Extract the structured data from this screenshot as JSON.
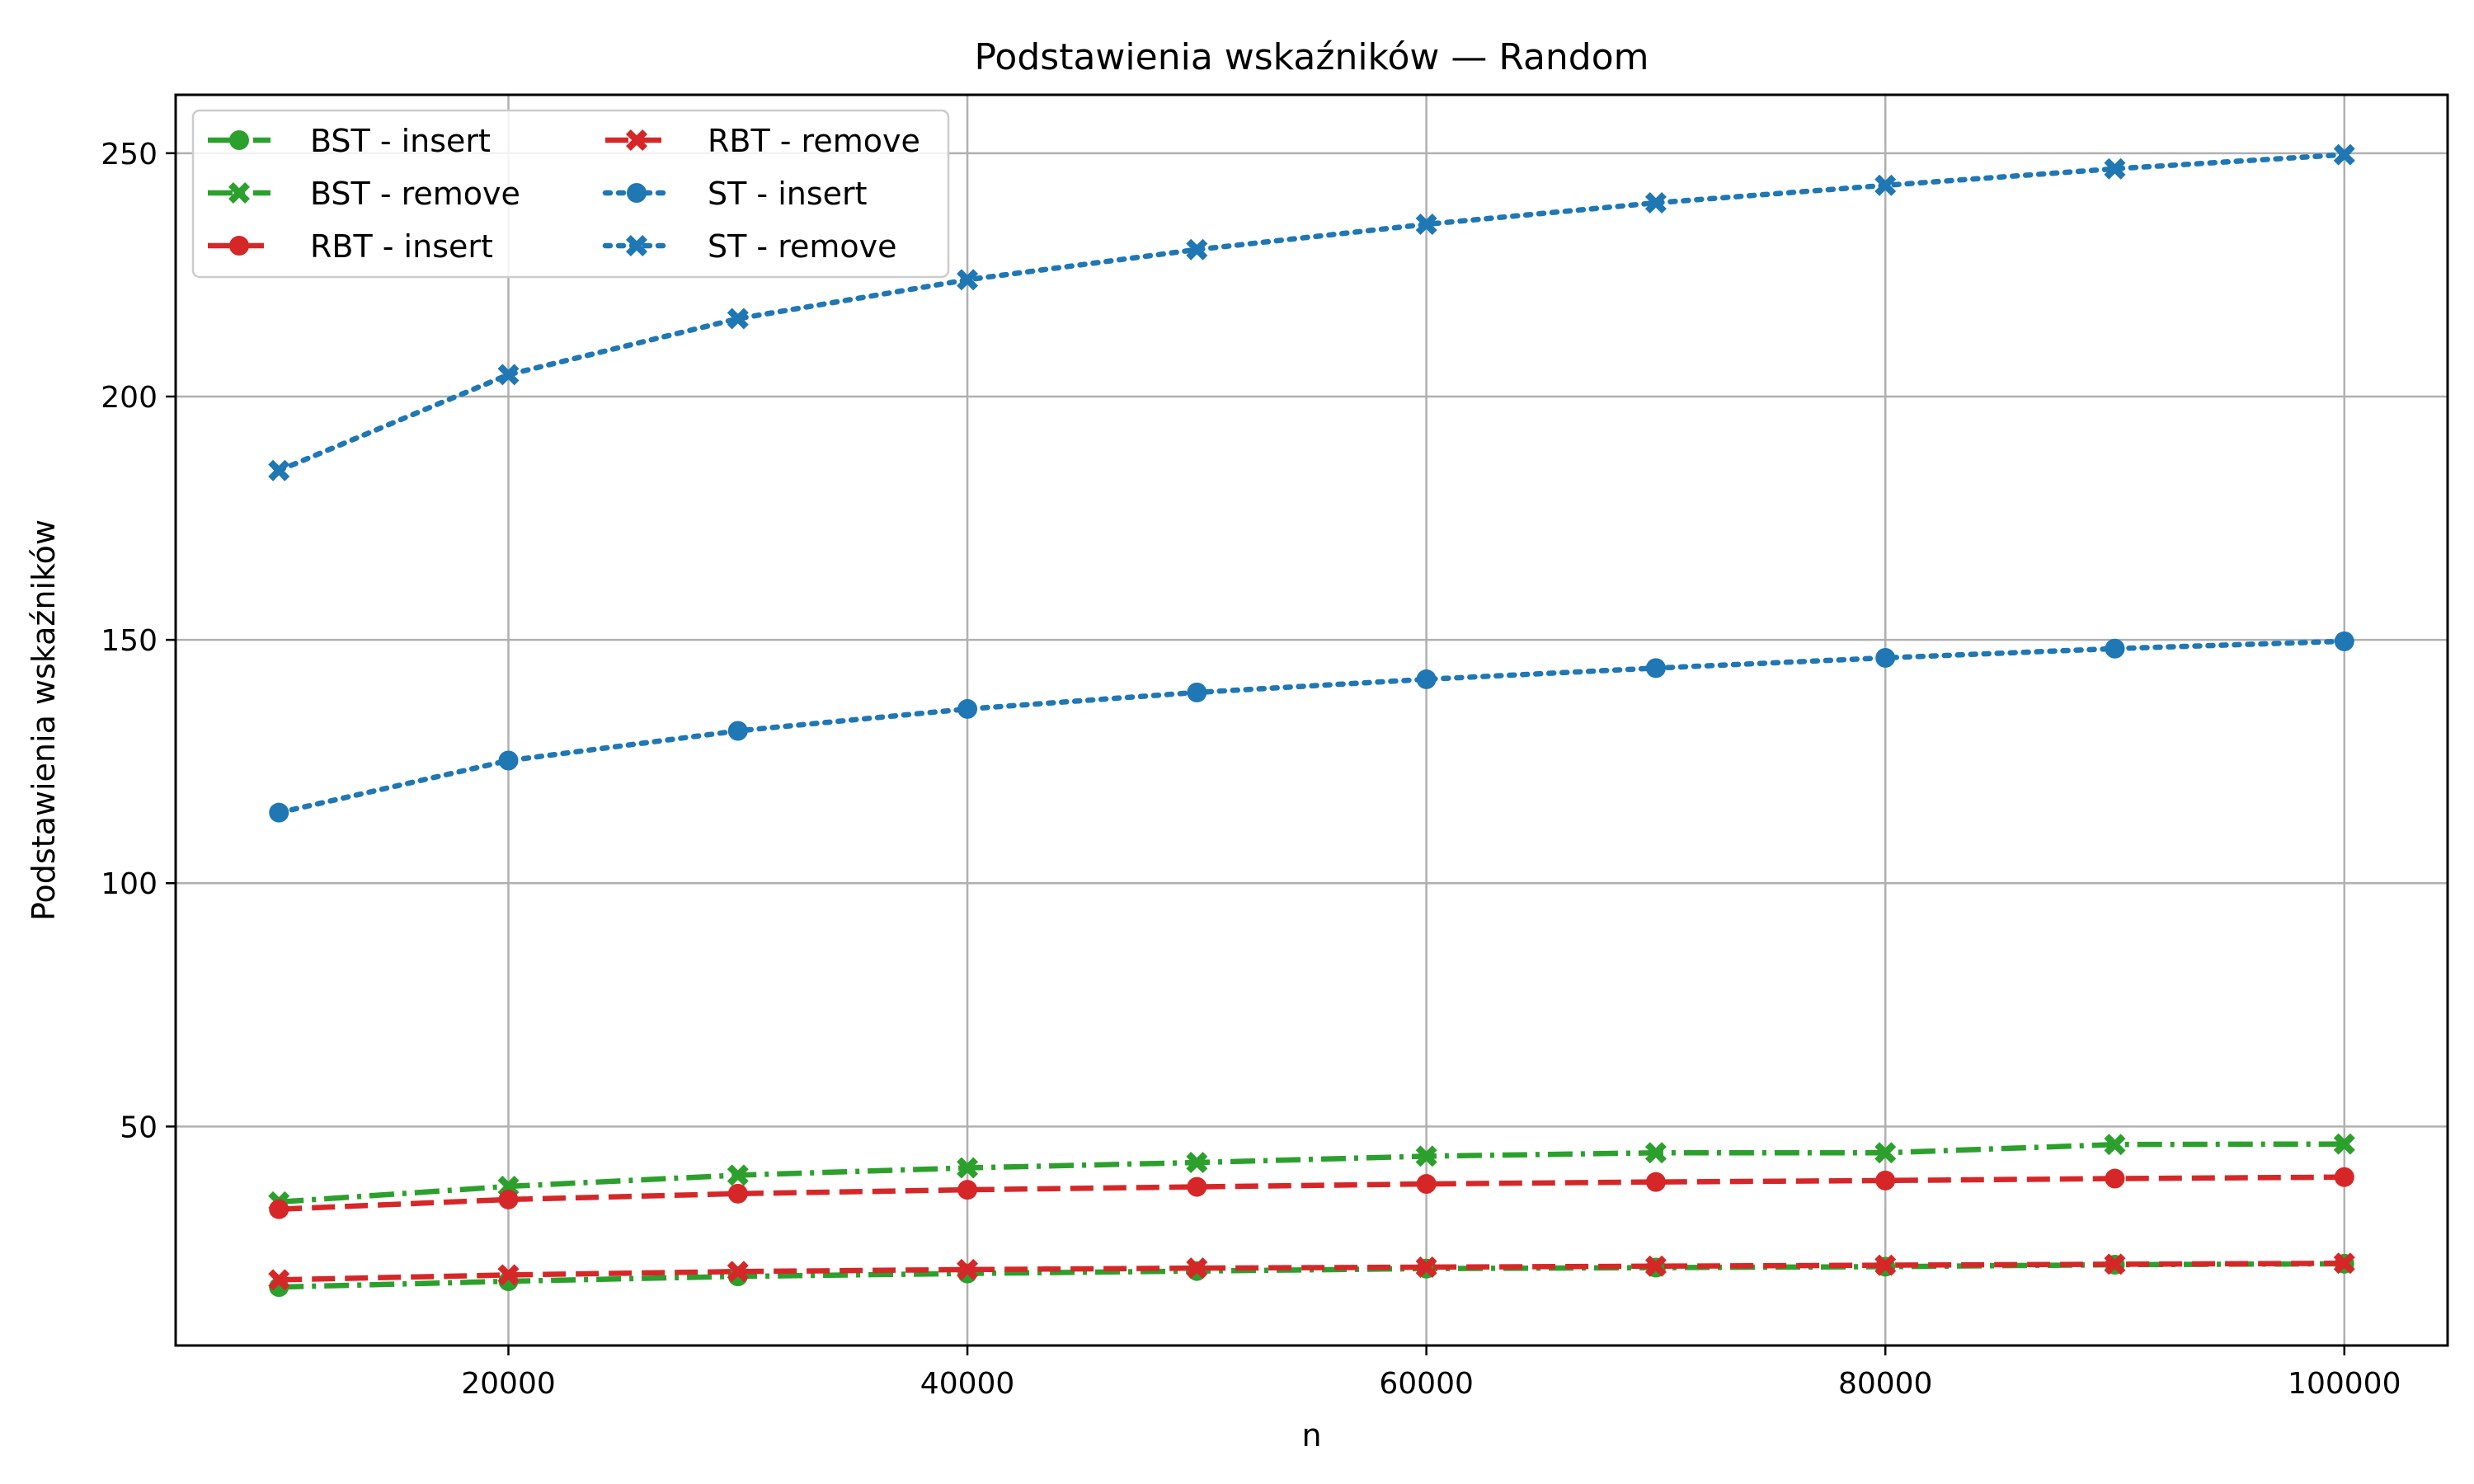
{
  "chart_data": {
    "type": "line",
    "title": "Podstawienia wskaźników — Random",
    "xlabel": "n",
    "ylabel": "Podstawienia wskaźników",
    "x": [
      10000,
      20000,
      30000,
      40000,
      50000,
      60000,
      70000,
      80000,
      90000,
      100000
    ],
    "xlim": [
      5500,
      104500
    ],
    "ylim": [
      5,
      262
    ],
    "xticks": [
      20000,
      40000,
      60000,
      80000,
      100000
    ],
    "yticks": [
      50,
      100,
      150,
      200,
      250
    ],
    "grid": true,
    "legend_position": "upper-left",
    "series": [
      {
        "name": "BST - insert",
        "color": "#2ca02c",
        "line_style": "dash-dot",
        "marker": "circle",
        "values": [
          17.0,
          18.2,
          19.2,
          19.8,
          20.3,
          20.8,
          21.0,
          21.2,
          21.6,
          21.8
        ]
      },
      {
        "name": "BST - remove",
        "color": "#2ca02c",
        "line_style": "dash-dot",
        "marker": "x-filled",
        "values": [
          34.5,
          37.7,
          40.0,
          41.5,
          42.6,
          43.9,
          44.6,
          44.6,
          46.3,
          46.4
        ]
      },
      {
        "name": "RBT - insert",
        "color": "#d62728",
        "line_style": "dashed",
        "marker": "circle",
        "values": [
          33.0,
          35.0,
          36.2,
          37.0,
          37.6,
          38.2,
          38.6,
          38.9,
          39.3,
          39.6
        ]
      },
      {
        "name": "RBT - remove",
        "color": "#d62728",
        "line_style": "dashed",
        "marker": "x-filled",
        "values": [
          18.5,
          19.5,
          20.2,
          20.6,
          20.9,
          21.1,
          21.3,
          21.5,
          21.7,
          21.9
        ]
      },
      {
        "name": "ST - insert",
        "color": "#1f77b4",
        "line_style": "dotted",
        "marker": "circle",
        "values": [
          114.5,
          125.2,
          131.3,
          135.8,
          139.2,
          141.9,
          144.2,
          146.3,
          148.2,
          149.7
        ]
      },
      {
        "name": "ST - remove",
        "color": "#1f77b4",
        "line_style": "dotted",
        "marker": "x-filled",
        "values": [
          184.8,
          204.5,
          216.0,
          224.0,
          230.2,
          235.4,
          239.8,
          243.4,
          246.8,
          249.7
        ]
      }
    ]
  }
}
